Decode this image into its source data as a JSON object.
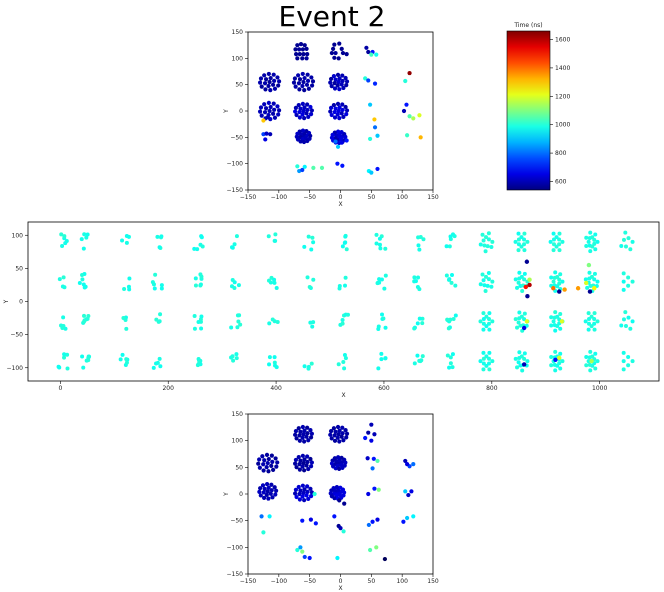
{
  "page": {
    "title": "Event 2"
  },
  "chart_data": [
    {
      "id": "top-view",
      "type": "scatter",
      "title": "Event 2",
      "xlabel": "X",
      "ylabel": "Y",
      "xlim": [
        -150,
        150
      ],
      "ylim": [
        -150,
        150
      ],
      "xticks": [
        "−150",
        "−100",
        "−50",
        "0",
        "50",
        "100",
        "150"
      ],
      "xtick_values": [
        -150,
        -100,
        -50,
        0,
        50,
        100,
        150
      ],
      "yticks": [
        "−150",
        "−100",
        "−50",
        "0",
        "50",
        "100",
        "150"
      ],
      "ytick_values": [
        -150,
        -100,
        -50,
        0,
        50,
        100,
        150
      ],
      "grid": false,
      "colormap": "jet",
      "points": [
        {
          "x": -70,
          "y": 125,
          "t": 560
        },
        {
          "x": -64,
          "y": 127,
          "t": 560
        },
        {
          "x": -58,
          "y": 125,
          "t": 560
        },
        {
          "x": -73,
          "y": 117,
          "t": 560
        },
        {
          "x": -67,
          "y": 117,
          "t": 570
        },
        {
          "x": -61,
          "y": 117,
          "t": 560
        },
        {
          "x": -55,
          "y": 118,
          "t": 560
        },
        {
          "x": -72,
          "y": 108,
          "t": 560
        },
        {
          "x": -66,
          "y": 108,
          "t": 560
        },
        {
          "x": -60,
          "y": 108,
          "t": 560
        },
        {
          "x": -54,
          "y": 108,
          "t": 560
        },
        {
          "x": -70,
          "y": 100,
          "t": 560
        },
        {
          "x": -62,
          "y": 100,
          "t": 560
        },
        {
          "x": -55,
          "y": 100,
          "t": 570
        },
        {
          "x": -10,
          "y": 126,
          "t": 560
        },
        {
          "x": -2,
          "y": 128,
          "t": 560
        },
        {
          "x": -12,
          "y": 118,
          "t": 560
        },
        {
          "x": 2,
          "y": 118,
          "t": 560
        },
        {
          "x": -14,
          "y": 110,
          "t": 560
        },
        {
          "x": -8,
          "y": 110,
          "t": 570
        },
        {
          "x": 4,
          "y": 110,
          "t": 560
        },
        {
          "x": 10,
          "y": 108,
          "t": 560
        },
        {
          "x": -10,
          "y": 101,
          "t": 560
        },
        {
          "x": -3,
          "y": 100,
          "t": 560
        },
        {
          "x": 42,
          "y": 120,
          "t": 580
        },
        {
          "x": 45,
          "y": 112,
          "t": 570
        },
        {
          "x": 52,
          "y": 112,
          "t": 700
        },
        {
          "x": 50,
          "y": 107,
          "t": 1030
        },
        {
          "x": 58,
          "y": 107,
          "t": 980
        },
        {
          "x": 112,
          "y": 72,
          "t": 1640
        },
        {
          "x": 105,
          "y": 57,
          "t": 1000
        },
        {
          "x": 40,
          "y": 62,
          "t": 1000
        },
        {
          "x": 45,
          "y": 58,
          "t": 750
        },
        {
          "x": 56,
          "y": 52,
          "t": 720
        },
        {
          "x": 48,
          "y": 12,
          "t": 900
        },
        {
          "x": 107,
          "y": 12,
          "t": 700
        },
        {
          "x": 103,
          "y": 0,
          "t": 600
        },
        {
          "x": 112,
          "y": -10,
          "t": 1050
        },
        {
          "x": 118,
          "y": -14,
          "t": 1150
        },
        {
          "x": 128,
          "y": -8,
          "t": 1200
        },
        {
          "x": 55,
          "y": -16,
          "t": 1300
        },
        {
          "x": 56,
          "y": -31,
          "t": 800
        },
        {
          "x": 60,
          "y": -47,
          "t": 900
        },
        {
          "x": 108,
          "y": -46,
          "t": 1020
        },
        {
          "x": 130,
          "y": -50,
          "t": 1320
        },
        {
          "x": 48,
          "y": -53,
          "t": 1000
        },
        {
          "x": -125,
          "y": -18,
          "t": 1300
        },
        {
          "x": -118,
          "y": -12,
          "t": 600
        },
        {
          "x": -125,
          "y": -44,
          "t": 750
        },
        {
          "x": -120,
          "y": -43,
          "t": 620
        },
        {
          "x": -114,
          "y": -44,
          "t": 600
        },
        {
          "x": -122,
          "y": -54,
          "t": 650
        },
        {
          "x": -70,
          "y": -105,
          "t": 1000
        },
        {
          "x": -58,
          "y": -106,
          "t": 950
        },
        {
          "x": -67,
          "y": -114,
          "t": 850
        },
        {
          "x": -62,
          "y": -112,
          "t": 750
        },
        {
          "x": -44,
          "y": -108,
          "t": 1050
        },
        {
          "x": -30,
          "y": -108,
          "t": 1050
        },
        {
          "x": -5,
          "y": -100,
          "t": 700
        },
        {
          "x": 3,
          "y": -104,
          "t": 700
        },
        {
          "x": 46,
          "y": -114,
          "t": 950
        },
        {
          "x": 50,
          "y": -117,
          "t": 900
        },
        {
          "x": 60,
          "y": -110,
          "t": 700
        },
        {
          "x": -4,
          "y": -68,
          "t": 900
        },
        {
          "x": -8,
          "y": -58,
          "t": 800
        },
        {
          "x": 10,
          "y": -56,
          "t": 700
        },
        {
          "x": 2,
          "y": -60,
          "t": 650
        }
      ],
      "clusters": [
        {
          "cx": -115,
          "cy": 55,
          "r": 17,
          "t": 580,
          "tvar": 30
        },
        {
          "cx": -60,
          "cy": 55,
          "r": 17,
          "t": 580,
          "tvar": 30
        },
        {
          "cx": -3,
          "cy": 55,
          "r": 15,
          "t": 600,
          "tvar": 60
        },
        {
          "cx": -115,
          "cy": 0,
          "r": 17,
          "t": 600,
          "tvar": 40
        },
        {
          "cx": -60,
          "cy": 0,
          "r": 15,
          "t": 620,
          "tvar": 60
        },
        {
          "cx": -3,
          "cy": 0,
          "r": 15,
          "t": 620,
          "tvar": 70
        },
        {
          "cx": -60,
          "cy": -48,
          "r": 12,
          "t": 600,
          "tvar": 40
        },
        {
          "cx": -3,
          "cy": -50,
          "r": 12,
          "t": 620,
          "tvar": 60
        }
      ]
    },
    {
      "id": "side-view",
      "type": "scatter",
      "xlabel": "X",
      "ylabel": "Y",
      "xlim": [
        -60,
        1110
      ],
      "ylim": [
        -120,
        120
      ],
      "xticks": [
        "0",
        "200",
        "400",
        "600",
        "800",
        "1000"
      ],
      "xtick_values": [
        0,
        200,
        400,
        600,
        800,
        1000
      ],
      "yticks": [
        "100",
        "50",
        "0",
        "−50",
        "−100"
      ],
      "ytick_values": [
        100,
        50,
        0,
        -50,
        -100
      ],
      "grid": false,
      "colormap": "jet",
      "column_x": [
        5,
        45,
        120,
        180,
        255,
        325,
        395,
        460,
        525,
        595,
        665,
        725,
        790,
        855,
        920,
        985,
        1050
      ],
      "row_y": [
        90,
        30,
        -30,
        -90
      ],
      "default_t": 990,
      "hot_points": [
        {
          "x": 863,
          "y": 22,
          "t": 1500
        },
        {
          "x": 866,
          "y": 8,
          "t": 560
        },
        {
          "x": 870,
          "y": 25,
          "t": 1600
        },
        {
          "x": 865,
          "y": 60,
          "t": 560
        },
        {
          "x": 925,
          "y": 15,
          "t": 560
        },
        {
          "x": 935,
          "y": 18,
          "t": 1350
        },
        {
          "x": 982,
          "y": 15,
          "t": 560
        },
        {
          "x": 990,
          "y": 20,
          "t": 1250
        },
        {
          "x": 975,
          "y": 28,
          "t": 1200
        },
        {
          "x": 960,
          "y": 20,
          "t": 1350
        },
        {
          "x": 914,
          "y": 20,
          "t": 1400
        },
        {
          "x": 980,
          "y": 55,
          "t": 1100
        },
        {
          "x": 930,
          "y": -30,
          "t": 1200
        },
        {
          "x": 860,
          "y": -40,
          "t": 650
        },
        {
          "x": 865,
          "y": -30,
          "t": 1200
        },
        {
          "x": 918,
          "y": -88,
          "t": 700
        },
        {
          "x": 925,
          "y": -85,
          "t": 1200
        },
        {
          "x": 985,
          "y": -90,
          "t": 1150
        },
        {
          "x": 860,
          "y": -95,
          "t": 600
        },
        {
          "x": 870,
          "y": 33,
          "t": 1150
        }
      ]
    },
    {
      "id": "bottom-view",
      "type": "scatter",
      "xlabel": "X",
      "ylabel": "Y",
      "xlim": [
        -150,
        150
      ],
      "ylim": [
        -150,
        150
      ],
      "xticks": [
        "−150",
        "−100",
        "−50",
        "0",
        "50",
        "100",
        "150"
      ],
      "xtick_values": [
        -150,
        -100,
        -50,
        0,
        50,
        100,
        150
      ],
      "yticks": [
        "−150",
        "−100",
        "−50",
        "0",
        "50",
        "100",
        "150"
      ],
      "ytick_values": [
        -150,
        -100,
        -50,
        0,
        50,
        100,
        150
      ],
      "grid": false,
      "colormap": "jet",
      "points": [
        {
          "x": 50,
          "y": 130,
          "t": 600
        },
        {
          "x": 45,
          "y": 115,
          "t": 580
        },
        {
          "x": 55,
          "y": 112,
          "t": 600
        },
        {
          "x": 40,
          "y": 105,
          "t": 700
        },
        {
          "x": 50,
          "y": 100,
          "t": 650
        },
        {
          "x": 44,
          "y": 67,
          "t": 620
        },
        {
          "x": 54,
          "y": 66,
          "t": 700
        },
        {
          "x": 52,
          "y": 48,
          "t": 800
        },
        {
          "x": 60,
          "y": 62,
          "t": 1050
        },
        {
          "x": 105,
          "y": 62,
          "t": 600
        },
        {
          "x": 112,
          "y": 52,
          "t": 750
        },
        {
          "x": 118,
          "y": 56,
          "t": 800
        },
        {
          "x": 108,
          "y": 56,
          "t": 650
        },
        {
          "x": 55,
          "y": 10,
          "t": 700
        },
        {
          "x": 62,
          "y": 8,
          "t": 1100
        },
        {
          "x": 45,
          "y": 0,
          "t": 650
        },
        {
          "x": 105,
          "y": 5,
          "t": 900
        },
        {
          "x": 115,
          "y": 5,
          "t": 650
        },
        {
          "x": 110,
          "y": -2,
          "t": 620
        },
        {
          "x": 52,
          "y": -52,
          "t": 700
        },
        {
          "x": 60,
          "y": -48,
          "t": 650
        },
        {
          "x": 46,
          "y": -58,
          "t": 800
        },
        {
          "x": 108,
          "y": -45,
          "t": 900
        },
        {
          "x": 118,
          "y": -42,
          "t": 950
        },
        {
          "x": 102,
          "y": -52,
          "t": 700
        },
        {
          "x": -128,
          "y": -42,
          "t": 800
        },
        {
          "x": -115,
          "y": -42,
          "t": 950
        },
        {
          "x": -125,
          "y": -72,
          "t": 1000
        },
        {
          "x": -70,
          "y": -105,
          "t": 1000
        },
        {
          "x": -62,
          "y": -108,
          "t": 1100
        },
        {
          "x": -58,
          "y": -118,
          "t": 750
        },
        {
          "x": -50,
          "y": -120,
          "t": 700
        },
        {
          "x": -65,
          "y": -100,
          "t": 850
        },
        {
          "x": -5,
          "y": -120,
          "t": 950
        },
        {
          "x": 48,
          "y": -105,
          "t": 1050
        },
        {
          "x": 58,
          "y": -100,
          "t": 1100
        },
        {
          "x": 72,
          "y": -122,
          "t": 500
        },
        {
          "x": -62,
          "y": -50,
          "t": 700
        },
        {
          "x": -48,
          "y": -48,
          "t": 650
        },
        {
          "x": -40,
          "y": -55,
          "t": 700
        },
        {
          "x": -3,
          "y": -60,
          "t": 560
        },
        {
          "x": 5,
          "y": -70,
          "t": 1000
        },
        {
          "x": 0,
          "y": -64,
          "t": 600
        },
        {
          "x": -10,
          "y": -42,
          "t": 700
        },
        {
          "x": -42,
          "y": 0,
          "t": 1000
        },
        {
          "x": -2,
          "y": -12,
          "t": 560
        },
        {
          "x": 6,
          "y": -18,
          "t": 560
        }
      ],
      "clusters": [
        {
          "cx": -60,
          "cy": 112,
          "r": 15,
          "t": 580,
          "tvar": 30
        },
        {
          "cx": -3,
          "cy": 112,
          "r": 15,
          "t": 580,
          "tvar": 30
        },
        {
          "cx": -118,
          "cy": 58,
          "r": 17,
          "t": 580,
          "tvar": 30
        },
        {
          "cx": -60,
          "cy": 58,
          "r": 15,
          "t": 580,
          "tvar": 40
        },
        {
          "cx": -3,
          "cy": 58,
          "r": 12,
          "t": 600,
          "tvar": 50
        },
        {
          "cx": -118,
          "cy": 5,
          "r": 15,
          "t": 600,
          "tvar": 30
        },
        {
          "cx": -60,
          "cy": 2,
          "r": 15,
          "t": 620,
          "tvar": 60
        },
        {
          "cx": -5,
          "cy": 2,
          "r": 12,
          "t": 620,
          "tvar": 60
        }
      ]
    },
    {
      "id": "colorbar",
      "type": "colorbar",
      "title": "Time (ns)",
      "vmin": 540,
      "vmax": 1660,
      "ticks": [
        "1600",
        "1400",
        "1200",
        "1000",
        "800",
        "600"
      ],
      "tick_values": [
        1600,
        1400,
        1200,
        1000,
        800,
        600
      ]
    }
  ]
}
